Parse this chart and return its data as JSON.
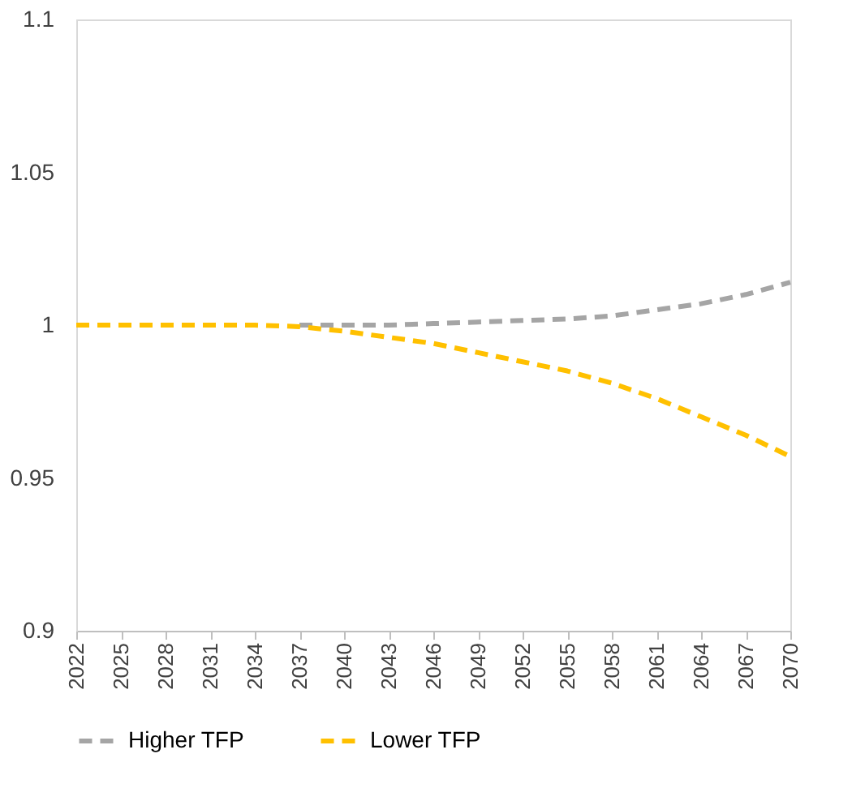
{
  "chart_data": {
    "type": "line",
    "x": [
      2022,
      2025,
      2028,
      2031,
      2034,
      2037,
      2040,
      2043,
      2046,
      2049,
      2052,
      2055,
      2058,
      2061,
      2064,
      2067,
      2070
    ],
    "series": [
      {
        "name": "Higher TFP",
        "color": "#a5a5a5",
        "values": [
          null,
          null,
          null,
          null,
          null,
          1.0,
          1.0,
          1.0,
          1.0005,
          1.001,
          1.0015,
          1.002,
          1.003,
          1.005,
          1.007,
          1.01,
          1.014
        ]
      },
      {
        "name": "Lower TFP",
        "color": "#ffc000",
        "values": [
          1.0,
          1.0,
          1.0,
          1.0,
          1.0,
          0.9995,
          0.998,
          0.996,
          0.994,
          0.991,
          0.988,
          0.985,
          0.981,
          0.976,
          0.97,
          0.964,
          0.957
        ]
      }
    ],
    "xlim": [
      2022,
      2070
    ],
    "xticks": [
      2022,
      2025,
      2028,
      2031,
      2034,
      2037,
      2040,
      2043,
      2046,
      2049,
      2052,
      2055,
      2058,
      2061,
      2064,
      2067,
      2070
    ],
    "ylim": [
      0.9,
      1.1
    ],
    "yticks": [
      0.9,
      0.95,
      1,
      1.05,
      1.1
    ],
    "line_style": "dashed",
    "marker": "none",
    "grid": false,
    "legend": "bottom"
  }
}
